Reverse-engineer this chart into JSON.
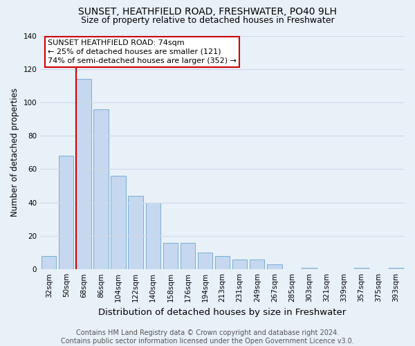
{
  "title": "SUNSET, HEATHFIELD ROAD, FRESHWATER, PO40 9LH",
  "subtitle": "Size of property relative to detached houses in Freshwater",
  "xlabel": "Distribution of detached houses by size in Freshwater",
  "ylabel": "Number of detached properties",
  "categories": [
    "32sqm",
    "50sqm",
    "68sqm",
    "86sqm",
    "104sqm",
    "122sqm",
    "140sqm",
    "158sqm",
    "176sqm",
    "194sqm",
    "213sqm",
    "231sqm",
    "249sqm",
    "267sqm",
    "285sqm",
    "303sqm",
    "321sqm",
    "339sqm",
    "357sqm",
    "375sqm",
    "393sqm"
  ],
  "values": [
    8,
    68,
    114,
    96,
    56,
    44,
    40,
    16,
    16,
    10,
    8,
    6,
    6,
    3,
    0,
    1,
    0,
    0,
    1,
    0,
    1
  ],
  "bar_color": "#c5d8ef",
  "bar_edge_color": "#7badd4",
  "background_color": "#e8f0f8",
  "grid_color": "#d0d8e8",
  "vline_color": "#cc0000",
  "annotation_text": "SUNSET HEATHFIELD ROAD: 74sqm\n← 25% of detached houses are smaller (121)\n74% of semi-detached houses are larger (352) →",
  "annotation_box_color": "#ffffff",
  "annotation_box_edge": "#cc0000",
  "footer_text": "Contains HM Land Registry data © Crown copyright and database right 2024.\nContains public sector information licensed under the Open Government Licence v3.0.",
  "ylim": [
    0,
    140
  ],
  "yticks": [
    0,
    20,
    40,
    60,
    80,
    100,
    120,
    140
  ],
  "title_fontsize": 10,
  "subtitle_fontsize": 9,
  "xlabel_fontsize": 9.5,
  "ylabel_fontsize": 8.5,
  "tick_fontsize": 7.5,
  "footer_fontsize": 7,
  "annotation_fontsize": 8,
  "vline_bar_index": 2
}
